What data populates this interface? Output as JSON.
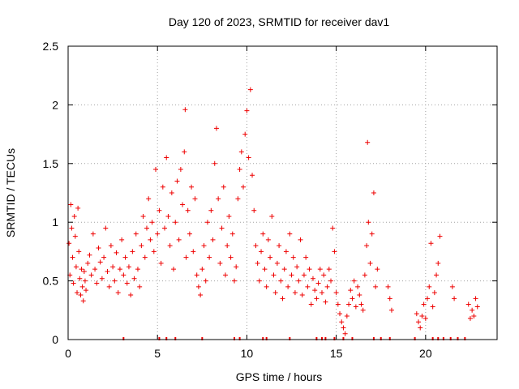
{
  "chart_data": {
    "type": "scatter",
    "title": "Day 120 of 2023, SRMTID for receiver dav1",
    "xlabel": "GPS time / hours",
    "ylabel": "SRMTID / TECUs",
    "xlim": [
      0,
      24
    ],
    "ylim": [
      0,
      2.5
    ],
    "xticks": [
      0,
      5,
      10,
      15,
      20
    ],
    "yticks": [
      0,
      0.5,
      1,
      1.5,
      2,
      2.5
    ],
    "xtick_labels": [
      "0",
      "5",
      "10",
      "15",
      "20"
    ],
    "ytick_labels": [
      "0",
      "0.5",
      "1",
      "1.5",
      "2",
      "2.5"
    ],
    "grid": true,
    "marker": "+",
    "color": "#ee0000",
    "series": [
      {
        "name": "dav1",
        "points": [
          [
            0.05,
            0.82
          ],
          [
            0.1,
            0.55
          ],
          [
            0.15,
            1.15
          ],
          [
            0.2,
            0.95
          ],
          [
            0.25,
            0.7
          ],
          [
            0.3,
            0.48
          ],
          [
            0.35,
            1.05
          ],
          [
            0.4,
            0.88
          ],
          [
            0.45,
            0.62
          ],
          [
            0.5,
            0.4
          ],
          [
            0.55,
            1.12
          ],
          [
            0.6,
            0.75
          ],
          [
            0.65,
            0.52
          ],
          [
            0.7,
            0.38
          ],
          [
            0.75,
            0.6
          ],
          [
            0.8,
            0.45
          ],
          [
            0.85,
            0.33
          ],
          [
            0.9,
            0.58
          ],
          [
            0.95,
            0.5
          ],
          [
            1.0,
            0.42
          ],
          [
            1.1,
            0.65
          ],
          [
            1.2,
            0.72
          ],
          [
            1.3,
            0.55
          ],
          [
            1.4,
            0.9
          ],
          [
            1.5,
            0.6
          ],
          [
            1.6,
            0.48
          ],
          [
            1.7,
            0.78
          ],
          [
            1.8,
            0.66
          ],
          [
            1.9,
            0.52
          ],
          [
            2.0,
            0.7
          ],
          [
            2.1,
            0.95
          ],
          [
            2.2,
            0.58
          ],
          [
            2.3,
            0.45
          ],
          [
            2.4,
            0.8
          ],
          [
            2.5,
            0.62
          ],
          [
            2.6,
            0.5
          ],
          [
            2.7,
            0.74
          ],
          [
            2.8,
            0.4
          ],
          [
            2.9,
            0.6
          ],
          [
            3.0,
            0.85
          ],
          [
            3.1,
            0.55
          ],
          [
            3.2,
            0.7
          ],
          [
            3.3,
            0.48
          ],
          [
            3.4,
            0.62
          ],
          [
            3.5,
            0.38
          ],
          [
            3.6,
            0.75
          ],
          [
            3.7,
            0.52
          ],
          [
            3.8,
            0.9
          ],
          [
            3.9,
            0.6
          ],
          [
            4.0,
            0.45
          ],
          [
            4.1,
            0.8
          ],
          [
            4.2,
            1.05
          ],
          [
            4.3,
            0.7
          ],
          [
            4.4,
            0.95
          ],
          [
            4.5,
            1.2
          ],
          [
            4.6,
            0.85
          ],
          [
            4.7,
            1.0
          ],
          [
            4.8,
            0.75
          ],
          [
            4.9,
            1.45
          ],
          [
            5.0,
            0.9
          ],
          [
            5.1,
            1.1
          ],
          [
            5.2,
            0.65
          ],
          [
            5.3,
            1.3
          ],
          [
            5.4,
            0.95
          ],
          [
            5.5,
            1.55
          ],
          [
            5.6,
            1.05
          ],
          [
            5.7,
            0.8
          ],
          [
            5.8,
            1.25
          ],
          [
            5.9,
            0.6
          ],
          [
            6.0,
            1.0
          ],
          [
            6.1,
            1.35
          ],
          [
            6.2,
            0.85
          ],
          [
            6.3,
            1.45
          ],
          [
            6.4,
            1.15
          ],
          [
            6.5,
            1.6
          ],
          [
            6.55,
            1.96
          ],
          [
            6.6,
            0.7
          ],
          [
            6.7,
            1.1
          ],
          [
            6.8,
            0.9
          ],
          [
            6.9,
            1.3
          ],
          [
            7.0,
            0.75
          ],
          [
            7.1,
            1.2
          ],
          [
            7.2,
            0.55
          ],
          [
            7.3,
            0.45
          ],
          [
            7.4,
            0.38
          ],
          [
            7.5,
            0.6
          ],
          [
            7.6,
            0.8
          ],
          [
            7.7,
            0.5
          ],
          [
            7.8,
            1.0
          ],
          [
            7.9,
            0.7
          ],
          [
            8.0,
            1.1
          ],
          [
            8.1,
            0.85
          ],
          [
            8.2,
            1.5
          ],
          [
            8.3,
            1.8
          ],
          [
            8.4,
            1.2
          ],
          [
            8.5,
            0.65
          ],
          [
            8.6,
            0.95
          ],
          [
            8.7,
            1.3
          ],
          [
            8.8,
            0.55
          ],
          [
            8.9,
            0.8
          ],
          [
            9.0,
            1.05
          ],
          [
            9.1,
            0.7
          ],
          [
            9.2,
            0.9
          ],
          [
            9.3,
            0.5
          ],
          [
            9.4,
            0.62
          ],
          [
            9.5,
            1.2
          ],
          [
            9.6,
            1.45
          ],
          [
            9.7,
            1.6
          ],
          [
            9.8,
            1.3
          ],
          [
            9.9,
            1.75
          ],
          [
            10.0,
            1.95
          ],
          [
            10.1,
            1.55
          ],
          [
            10.2,
            2.13
          ],
          [
            10.3,
            1.4
          ],
          [
            10.4,
            1.1
          ],
          [
            10.5,
            0.8
          ],
          [
            10.6,
            0.65
          ],
          [
            10.7,
            0.5
          ],
          [
            10.8,
            0.75
          ],
          [
            10.9,
            0.9
          ],
          [
            11.0,
            0.6
          ],
          [
            11.1,
            0.45
          ],
          [
            11.2,
            0.85
          ],
          [
            11.3,
            0.7
          ],
          [
            11.4,
            1.05
          ],
          [
            11.5,
            0.55
          ],
          [
            11.6,
            0.4
          ],
          [
            11.7,
            0.65
          ],
          [
            11.8,
            0.8
          ],
          [
            11.9,
            0.5
          ],
          [
            12.0,
            0.35
          ],
          [
            12.1,
            0.6
          ],
          [
            12.2,
            0.75
          ],
          [
            12.3,
            0.45
          ],
          [
            12.4,
            0.9
          ],
          [
            12.5,
            0.55
          ],
          [
            12.6,
            0.7
          ],
          [
            12.7,
            0.4
          ],
          [
            12.8,
            0.62
          ],
          [
            12.9,
            0.5
          ],
          [
            13.0,
            0.85
          ],
          [
            13.1,
            0.38
          ],
          [
            13.2,
            0.55
          ],
          [
            13.3,
            0.7
          ],
          [
            13.4,
            0.45
          ],
          [
            13.5,
            0.6
          ],
          [
            13.6,
            0.3
          ],
          [
            13.7,
            0.52
          ],
          [
            13.8,
            0.42
          ],
          [
            13.9,
            0.35
          ],
          [
            14.0,
            0.48
          ],
          [
            14.1,
            0.6
          ],
          [
            14.2,
            0.4
          ],
          [
            14.3,
            0.55
          ],
          [
            14.4,
            0.32
          ],
          [
            14.5,
            0.45
          ],
          [
            14.6,
            0.6
          ],
          [
            14.7,
            0.5
          ],
          [
            14.8,
            0.95
          ],
          [
            14.9,
            0.75
          ],
          [
            15.0,
            0.4
          ],
          [
            15.1,
            0.3
          ],
          [
            15.2,
            0.22
          ],
          [
            15.3,
            0.15
          ],
          [
            15.4,
            0.1
          ],
          [
            15.5,
            0.05
          ],
          [
            15.6,
            0.2
          ],
          [
            15.7,
            0.3
          ],
          [
            15.8,
            0.42
          ],
          [
            15.9,
            0.35
          ],
          [
            16.0,
            0.5
          ],
          [
            16.1,
            0.28
          ],
          [
            16.2,
            0.45
          ],
          [
            16.3,
            0.38
          ],
          [
            16.4,
            0.3
          ],
          [
            16.5,
            0.25
          ],
          [
            16.6,
            0.55
          ],
          [
            16.7,
            0.8
          ],
          [
            16.75,
            1.68
          ],
          [
            16.8,
            1.0
          ],
          [
            16.9,
            0.65
          ],
          [
            17.0,
            0.9
          ],
          [
            17.1,
            1.25
          ],
          [
            17.2,
            0.45
          ],
          [
            17.3,
            0.6
          ],
          [
            17.9,
            0.45
          ],
          [
            18.0,
            0.35
          ],
          [
            18.1,
            0.25
          ],
          [
            19.5,
            0.22
          ],
          [
            19.6,
            0.15
          ],
          [
            19.7,
            0.1
          ],
          [
            19.8,
            0.2
          ],
          [
            19.9,
            0.3
          ],
          [
            20.0,
            0.18
          ],
          [
            20.1,
            0.35
          ],
          [
            20.2,
            0.45
          ],
          [
            20.3,
            0.82
          ],
          [
            20.4,
            0.28
          ],
          [
            20.5,
            0.4
          ],
          [
            20.6,
            0.55
          ],
          [
            20.7,
            0.65
          ],
          [
            20.8,
            0.88
          ],
          [
            21.5,
            0.45
          ],
          [
            21.6,
            0.35
          ],
          [
            22.4,
            0.3
          ],
          [
            22.5,
            0.18
          ],
          [
            22.6,
            0.25
          ],
          [
            22.7,
            0.2
          ],
          [
            22.8,
            0.35
          ],
          [
            22.9,
            0.28
          ]
        ]
      }
    ],
    "rug_x": [
      3.1,
      5.1,
      5.5,
      6.0,
      7.5,
      9.3,
      9.6,
      10.9,
      11.1,
      12.4,
      13.9,
      14.2,
      14.4,
      14.9,
      15.4,
      15.9,
      17.1,
      17.5,
      18.0,
      19.4,
      20.4,
      20.7,
      21.0,
      21.4,
      21.8,
      22.2
    ]
  }
}
